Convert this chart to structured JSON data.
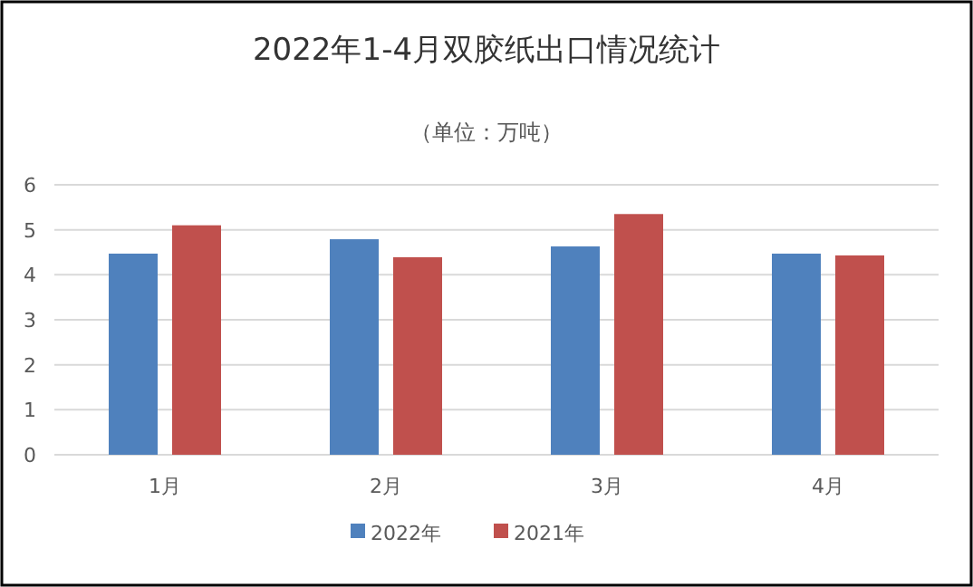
{
  "chart_data": {
    "type": "bar",
    "title": "2022年1-4月双胶纸出口情况统计",
    "subtitle": "（单位：万吨）",
    "categories": [
      "1月",
      "2月",
      "3月",
      "4月"
    ],
    "series": [
      {
        "name": "2022年",
        "color": "#4f81bd",
        "values": [
          4.47,
          4.79,
          4.63,
          4.47
        ]
      },
      {
        "name": "2021年",
        "color": "#c0504d",
        "values": [
          5.1,
          4.39,
          5.35,
          4.43
        ]
      }
    ],
    "ylim": [
      0,
      6
    ],
    "yticks": [
      0,
      1,
      2,
      3,
      4,
      5,
      6
    ],
    "grid": "y",
    "legend": "bottom"
  }
}
